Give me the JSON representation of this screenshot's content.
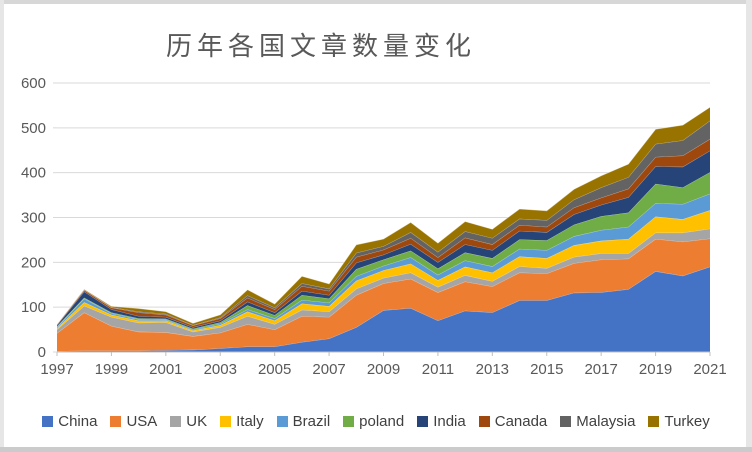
{
  "chart": {
    "title_color": "#595959",
    "axis_text_color": "#595959",
    "gridline_color": "#d9d9d9",
    "axis_line_color": "#c0c0c0",
    "legend_text_color": "#404040",
    "band_separator_color": "rgba(255,255,255,0.45)"
  },
  "chart_data": {
    "type": "area",
    "stacked": true,
    "title": "历年各国文章数量变化",
    "xlabel": "",
    "ylabel": "",
    "legend_position": "bottom",
    "grid": true,
    "ylim": [
      0,
      600
    ],
    "y_ticks": [
      0,
      100,
      200,
      300,
      400,
      500,
      600
    ],
    "x": [
      1997,
      1998,
      1999,
      2000,
      2001,
      2002,
      2003,
      2004,
      2005,
      2006,
      2007,
      2008,
      2009,
      2010,
      2011,
      2012,
      2013,
      2014,
      2015,
      2016,
      2017,
      2018,
      2019,
      2020,
      2021
    ],
    "x_tick_years": [
      1997,
      1999,
      2001,
      2003,
      2005,
      2007,
      2009,
      2011,
      2013,
      2015,
      2017,
      2019,
      2021
    ],
    "x_tick_labels": [
      "1997",
      "1999",
      "2001",
      "2003",
      "2005",
      "2007",
      "2009",
      "2011",
      "2013",
      "2015",
      "2017",
      "2019",
      "2021"
    ],
    "series": [
      {
        "name": "China",
        "color": "#4472C4",
        "values": [
          2,
          3,
          3,
          3,
          4,
          5,
          8,
          12,
          12,
          22,
          30,
          55,
          93,
          98,
          70,
          92,
          88,
          115,
          115,
          132,
          133,
          140,
          180,
          170,
          190
        ]
      },
      {
        "name": "USA",
        "color": "#ED7D31",
        "values": [
          40,
          85,
          55,
          42,
          40,
          30,
          35,
          50,
          38,
          58,
          48,
          72,
          60,
          65,
          63,
          65,
          58,
          62,
          60,
          66,
          73,
          68,
          72,
          76,
          63
        ]
      },
      {
        "name": "UK",
        "color": "#A5A5A5",
        "values": [
          8,
          15,
          20,
          20,
          22,
          10,
          12,
          18,
          12,
          14,
          12,
          14,
          12,
          14,
          12,
          14,
          12,
          14,
          12,
          14,
          14,
          12,
          14,
          20,
          22
        ]
      },
      {
        "name": "Italy",
        "color": "#FFC000",
        "values": [
          3,
          8,
          5,
          5,
          4,
          3,
          5,
          10,
          8,
          14,
          12,
          18,
          17,
          20,
          15,
          19,
          19,
          22,
          22,
          26,
          28,
          32,
          36,
          30,
          41
        ]
      },
      {
        "name": "Brazil",
        "color": "#5B9BD5",
        "values": [
          2,
          8,
          3,
          3,
          2,
          2,
          3,
          5,
          5,
          8,
          8,
          10,
          10,
          14,
          12,
          14,
          14,
          17,
          18,
          20,
          24,
          27,
          30,
          34,
          37
        ]
      },
      {
        "name": "poland",
        "color": "#70AD47",
        "values": [
          2,
          2,
          2,
          2,
          2,
          2,
          3,
          9,
          7,
          11,
          9,
          16,
          14,
          15,
          14,
          18,
          18,
          21,
          22,
          26,
          31,
          32,
          43,
          37,
          48
        ]
      },
      {
        "name": "India",
        "color": "#264478",
        "values": [
          3,
          14,
          7,
          5,
          4,
          3,
          4,
          8,
          6,
          9,
          8,
          14,
          11,
          15,
          14,
          18,
          18,
          19,
          18,
          23,
          25,
          34,
          39,
          46,
          48
        ]
      },
      {
        "name": "Canada",
        "color": "#9E480E",
        "values": [
          2,
          3,
          4,
          8,
          5,
          4,
          5,
          9,
          7,
          11,
          9,
          13,
          11,
          13,
          11,
          15,
          13,
          13,
          12,
          15,
          16,
          19,
          21,
          25,
          26
        ]
      },
      {
        "name": "Malaysia",
        "color": "#636363",
        "values": [
          0,
          1,
          1,
          2,
          2,
          1,
          2,
          5,
          4,
          6,
          5,
          9,
          8,
          13,
          12,
          14,
          14,
          14,
          15,
          18,
          23,
          26,
          29,
          34,
          41
        ]
      },
      {
        "name": "Turkey",
        "color": "#997300",
        "values": [
          0,
          1,
          2,
          7,
          5,
          4,
          6,
          13,
          8,
          16,
          11,
          18,
          16,
          22,
          20,
          22,
          20,
          22,
          21,
          23,
          26,
          29,
          33,
          34,
          30
        ]
      }
    ]
  }
}
